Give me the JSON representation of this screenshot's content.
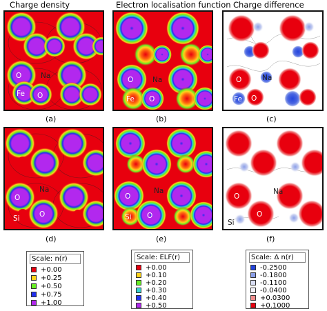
{
  "columns": [
    {
      "title": "Charge density"
    },
    {
      "title": "Electron localisation function"
    },
    {
      "title": "Charge difference"
    }
  ],
  "panels": [
    {
      "letter": "(a)",
      "labels": [
        "O",
        "Na",
        "Fe",
        "O"
      ]
    },
    {
      "letter": "(b)",
      "labels": [
        "O",
        "Na",
        "Fe",
        "O"
      ]
    },
    {
      "letter": "(c)",
      "labels": [
        "O",
        "Na",
        "Fe",
        "O"
      ]
    },
    {
      "letter": "(d)",
      "labels": [
        "O",
        "Na",
        "Si",
        "O"
      ]
    },
    {
      "letter": "(e)",
      "labels": [
        "O",
        "Na",
        "Si",
        "O"
      ]
    },
    {
      "letter": "(f)",
      "labels": [
        "O",
        "Na",
        "Si",
        "O"
      ]
    }
  ],
  "legends": [
    {
      "title": "Scale:  n(r)",
      "rows": [
        {
          "color": "#e8000e",
          "value": "+0.00"
        },
        {
          "color": "#ffd21a",
          "value": "+0.25"
        },
        {
          "color": "#66ee22",
          "value": "+0.50"
        },
        {
          "color": "#2230ee",
          "value": "+0.75"
        },
        {
          "color": "#b228ee",
          "value": "+1.00"
        }
      ]
    },
    {
      "title": "Scale:  ELF(r)",
      "rows": [
        {
          "color": "#e8000e",
          "value": "+0.00"
        },
        {
          "color": "#ffd21a",
          "value": "+0.10"
        },
        {
          "color": "#66ee22",
          "value": "+0.20"
        },
        {
          "color": "#33d4d0",
          "value": "+0.30"
        },
        {
          "color": "#2230ee",
          "value": "+0.40"
        },
        {
          "color": "#b228ee",
          "value": "+0.50"
        }
      ]
    },
    {
      "title": "Scale:   Δ n(r)",
      "rows": [
        {
          "color": "#2244dd",
          "value": "-0.2500"
        },
        {
          "color": "#8a9ee8",
          "value": "-0.1800"
        },
        {
          "color": "#d9def4",
          "value": "-0.1100"
        },
        {
          "color": "#f3f3fb",
          "value": "-0.0400"
        },
        {
          "color": "#f08c8c",
          "value": "+0.0300"
        },
        {
          "color": "#e8000e",
          "value": "+0.1000"
        }
      ]
    }
  ]
}
